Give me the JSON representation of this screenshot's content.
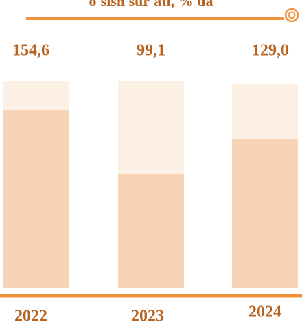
{
  "chart_data": {
    "type": "bar",
    "title": "o'sish sur'ati, % da",
    "categories": [
      "2022",
      "2023",
      "2024"
    ],
    "values": [
      154.6,
      99.1,
      129.0
    ],
    "value_labels": [
      "154,6",
      "99,1",
      "129,0"
    ],
    "color": "#f7d4b5"
  }
}
